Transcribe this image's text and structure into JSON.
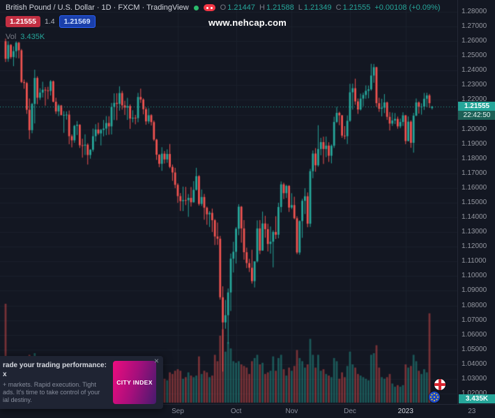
{
  "header": {
    "title": "British Pound / U.S. Dollar · 1D · FXCM · TradingView",
    "ohlc": {
      "o_label": "O",
      "o": "1.21447",
      "h_label": "H",
      "h": "1.21588",
      "l_label": "L",
      "l": "1.21349",
      "c_label": "C",
      "c": "1.21555",
      "change": "+0.00108 (+0.09%)"
    },
    "bid": "1.21555",
    "spread": "1.4",
    "ask": "1.21569",
    "vol_label": "Vol",
    "vol_value": "3.435K"
  },
  "watermark": "www.nehcap.com",
  "colors": {
    "up": "#26a69a",
    "down": "#ef5350",
    "bg": "#131722",
    "grid": "#1b202c",
    "axis_text": "#9598a1"
  },
  "price_badge": {
    "price": "1.21555",
    "countdown": "22:42:50"
  },
  "volume_badge": "3.435K",
  "ad": {
    "title_line1": "rade your trading performance: City",
    "title_line2": "x",
    "body_line1": "+ markets. Rapid execution. Tight",
    "body_line2": "ads. It's time to take control of your",
    "body_line3": "ial destiny.",
    "logo_text": "CITY INDEX",
    "close": "×"
  },
  "chart_data": {
    "type": "candlestick",
    "title": "British Pound / U.S. Dollar",
    "symbol": "GBPUSD",
    "interval": "1D",
    "exchange": "FXCM",
    "last_price": 1.21555,
    "countdown": "22:42:50",
    "current_volume": "3.435K",
    "legend_ohlc": {
      "open": 1.21447,
      "high": 1.21588,
      "low": 1.21349,
      "close": 1.21555,
      "change": 0.00108,
      "change_pct": 0.09
    },
    "y_axis": {
      "min": 1.02,
      "max": 1.28,
      "tick_step": 0.01,
      "labels": [
        "1.28000",
        "1.27000",
        "1.26000",
        "1.25000",
        "1.24000",
        "1.23000",
        "1.22000",
        "1.21000",
        "1.20000",
        "1.19000",
        "1.18000",
        "1.17000",
        "1.16000",
        "1.15000",
        "1.14000",
        "1.13000",
        "1.12000",
        "1.11000",
        "1.10000",
        "1.09000",
        "1.08000",
        "1.07000",
        "1.06000",
        "1.05000",
        "1.04000",
        "1.03000",
        "1.02000"
      ]
    },
    "x_axis": {
      "labels": [
        {
          "label": "Sep",
          "index": 65
        },
        {
          "label": "Oct",
          "index": 87
        },
        {
          "label": "Nov",
          "index": 108
        },
        {
          "label": "Dec",
          "index": 130
        },
        {
          "label": "2023",
          "index": 151,
          "major": true
        },
        {
          "label": "23",
          "index": 176
        }
      ]
    },
    "candles_format": [
      "open",
      "high",
      "low",
      "close",
      "volume_k"
    ],
    "candles": [
      [
        1.26,
        1.2618,
        1.2458,
        1.248,
        620
      ],
      [
        1.248,
        1.26,
        1.246,
        1.2575,
        230
      ],
      [
        1.2575,
        1.258,
        1.248,
        1.2492,
        180
      ],
      [
        1.2492,
        1.2565,
        1.243,
        1.2532,
        170
      ],
      [
        1.2532,
        1.2599,
        1.2485,
        1.259,
        160
      ],
      [
        1.259,
        1.2595,
        1.2483,
        1.2538,
        175
      ],
      [
        1.2538,
        1.2547,
        1.2315,
        1.2322,
        240
      ],
      [
        1.2322,
        1.2339,
        1.2276,
        1.2315,
        190
      ],
      [
        1.2315,
        1.2323,
        1.2105,
        1.2133,
        280
      ],
      [
        1.2133,
        1.221,
        1.1933,
        1.1994,
        300
      ],
      [
        1.1994,
        1.218,
        1.1973,
        1.2173,
        260
      ],
      [
        1.2173,
        1.2406,
        1.204,
        1.235,
        310
      ],
      [
        1.235,
        1.2361,
        1.2171,
        1.2215,
        250
      ],
      [
        1.2215,
        1.228,
        1.22,
        1.225,
        150
      ],
      [
        1.225,
        1.2324,
        1.2217,
        1.227,
        160
      ],
      [
        1.227,
        1.2288,
        1.2161,
        1.2265,
        170
      ],
      [
        1.2265,
        1.229,
        1.2205,
        1.2261,
        140
      ],
      [
        1.2261,
        1.2335,
        1.223,
        1.2327,
        150
      ],
      [
        1.2327,
        1.2332,
        1.2183,
        1.2188,
        180
      ],
      [
        1.2188,
        1.2215,
        1.2105,
        1.2122,
        190
      ],
      [
        1.2122,
        1.2172,
        1.209,
        1.2162,
        150
      ],
      [
        1.2162,
        1.2166,
        1.2093,
        1.2098,
        160
      ],
      [
        1.2098,
        1.2124,
        1.1976,
        1.2098,
        170
      ],
      [
        1.2098,
        1.2122,
        1.2066,
        1.21,
        120
      ],
      [
        1.21,
        1.2128,
        1.1899,
        1.1953,
        210
      ],
      [
        1.1953,
        1.1965,
        1.1877,
        1.1925,
        180
      ],
      [
        1.1925,
        1.203,
        1.1908,
        1.2024,
        170
      ],
      [
        1.2024,
        1.2056,
        1.1961,
        1.2031,
        160
      ],
      [
        1.2031,
        1.2035,
        1.1873,
        1.1891,
        190
      ],
      [
        1.1891,
        1.1936,
        1.1807,
        1.1889,
        200
      ],
      [
        1.1889,
        1.1966,
        1.1825,
        1.1895,
        180
      ],
      [
        1.1895,
        1.1905,
        1.176,
        1.1825,
        220
      ],
      [
        1.1825,
        1.1866,
        1.18,
        1.1861,
        150
      ],
      [
        1.1861,
        1.2005,
        1.1848,
        1.1953,
        190
      ],
      [
        1.1953,
        1.2035,
        1.1917,
        1.1999,
        170
      ],
      [
        1.1999,
        1.2045,
        1.1962,
        1.1972,
        150
      ],
      [
        1.1972,
        1.2003,
        1.189,
        1.1996,
        160
      ],
      [
        1.1996,
        1.2064,
        1.1952,
        1.2005,
        150
      ],
      [
        1.2005,
        1.209,
        1.196,
        1.2043,
        140
      ],
      [
        1.2043,
        1.2089,
        1.1963,
        1.202,
        150
      ],
      [
        1.202,
        1.218,
        1.1965,
        1.2153,
        230
      ],
      [
        1.2153,
        1.2245,
        1.2063,
        1.218,
        210
      ],
      [
        1.218,
        1.2246,
        1.2062,
        1.2173,
        180
      ],
      [
        1.2173,
        1.2293,
        1.2127,
        1.2247,
        190
      ],
      [
        1.2247,
        1.2262,
        1.2134,
        1.2163,
        170
      ],
      [
        1.2163,
        1.2194,
        1.2098,
        1.2148,
        150
      ],
      [
        1.2148,
        1.2214,
        1.2064,
        1.2158,
        200
      ],
      [
        1.2158,
        1.217,
        1.2003,
        1.2073,
        210
      ],
      [
        1.2073,
        1.213,
        1.2047,
        1.2079,
        130
      ],
      [
        1.2079,
        1.2098,
        1.2034,
        1.2076,
        140
      ],
      [
        1.2076,
        1.2248,
        1.2048,
        1.222,
        220
      ],
      [
        1.222,
        1.2277,
        1.218,
        1.2203,
        160
      ],
      [
        1.2203,
        1.2211,
        1.2102,
        1.2137,
        150
      ],
      [
        1.2137,
        1.2149,
        1.2031,
        1.2054,
        160
      ],
      [
        1.2054,
        1.2144,
        1.2038,
        1.2096,
        150
      ],
      [
        1.2096,
        1.2103,
        1.2026,
        1.2049,
        140
      ],
      [
        1.2049,
        1.206,
        1.192,
        1.193,
        180
      ],
      [
        1.193,
        1.1935,
        1.1792,
        1.1827,
        200
      ],
      [
        1.1827,
        1.1831,
        1.1742,
        1.1765,
        190
      ],
      [
        1.1765,
        1.1878,
        1.1717,
        1.1834,
        180
      ],
      [
        1.1834,
        1.1852,
        1.1767,
        1.1795,
        150
      ],
      [
        1.1795,
        1.1864,
        1.1772,
        1.1832,
        140
      ],
      [
        1.1832,
        1.19,
        1.1735,
        1.1744,
        190
      ],
      [
        1.1744,
        1.176,
        1.1649,
        1.1706,
        180
      ],
      [
        1.1706,
        1.1738,
        1.1599,
        1.1622,
        200
      ],
      [
        1.1622,
        1.1633,
        1.1499,
        1.1545,
        210
      ],
      [
        1.1545,
        1.1566,
        1.1444,
        1.1511,
        200
      ],
      [
        1.1511,
        1.161,
        1.1443,
        1.1518,
        150
      ],
      [
        1.1518,
        1.1608,
        1.1484,
        1.1517,
        160
      ],
      [
        1.1517,
        1.1559,
        1.1404,
        1.1533,
        190
      ],
      [
        1.1533,
        1.1607,
        1.1474,
        1.1503,
        170
      ],
      [
        1.1503,
        1.1647,
        1.1501,
        1.1588,
        160
      ],
      [
        1.1588,
        1.1738,
        1.1583,
        1.1681,
        170
      ],
      [
        1.1681,
        1.1688,
        1.148,
        1.1492,
        290
      ],
      [
        1.1492,
        1.159,
        1.1478,
        1.1539,
        180
      ],
      [
        1.1539,
        1.156,
        1.1384,
        1.1466,
        200
      ],
      [
        1.1466,
        1.1474,
        1.135,
        1.1421,
        190
      ],
      [
        1.1421,
        1.1443,
        1.1335,
        1.1431,
        160
      ],
      [
        1.1431,
        1.146,
        1.1301,
        1.1381,
        170
      ],
      [
        1.1381,
        1.1389,
        1.1212,
        1.127,
        300
      ],
      [
        1.127,
        1.1365,
        1.1213,
        1.1255,
        260
      ],
      [
        1.1255,
        1.1274,
        1.084,
        1.0856,
        420
      ],
      [
        1.0856,
        1.0931,
        1.035,
        1.0685,
        460
      ],
      [
        1.0685,
        1.0838,
        1.0642,
        1.0734,
        320
      ],
      [
        1.0734,
        1.0916,
        1.0539,
        1.0889,
        380
      ],
      [
        1.0889,
        1.1154,
        1.0763,
        1.1119,
        340
      ],
      [
        1.1119,
        1.1234,
        1.1025,
        1.1166,
        260
      ],
      [
        1.1166,
        1.1334,
        1.1086,
        1.1323,
        250
      ],
      [
        1.1323,
        1.149,
        1.1279,
        1.1473,
        260
      ],
      [
        1.1473,
        1.1478,
        1.1228,
        1.1325,
        240
      ],
      [
        1.1325,
        1.1382,
        1.1112,
        1.1163,
        230
      ],
      [
        1.1163,
        1.1194,
        1.1055,
        1.1089,
        220
      ],
      [
        1.1089,
        1.1118,
        1.1028,
        1.1057,
        180
      ],
      [
        1.1057,
        1.118,
        1.0949,
        1.0966,
        260
      ],
      [
        1.0966,
        1.1098,
        1.0923,
        1.1101,
        280
      ],
      [
        1.1101,
        1.138,
        1.1093,
        1.1325,
        300
      ],
      [
        1.1325,
        1.1382,
        1.115,
        1.1174,
        240
      ],
      [
        1.1174,
        1.144,
        1.1174,
        1.1359,
        250
      ],
      [
        1.1359,
        1.1411,
        1.1262,
        1.132,
        180
      ],
      [
        1.132,
        1.1357,
        1.1168,
        1.1219,
        190
      ],
      [
        1.1219,
        1.1338,
        1.1153,
        1.1235,
        200
      ],
      [
        1.1235,
        1.1312,
        1.106,
        1.1301,
        290
      ],
      [
        1.1301,
        1.1408,
        1.1253,
        1.1282,
        200
      ],
      [
        1.1282,
        1.15,
        1.1258,
        1.1471,
        280
      ],
      [
        1.1471,
        1.1645,
        1.1434,
        1.1625,
        300
      ],
      [
        1.1625,
        1.1636,
        1.1525,
        1.1565,
        210
      ],
      [
        1.1565,
        1.1622,
        1.1532,
        1.1615,
        170
      ],
      [
        1.1615,
        1.162,
        1.1437,
        1.1467,
        220
      ],
      [
        1.1467,
        1.1565,
        1.1456,
        1.1484,
        200
      ],
      [
        1.1484,
        1.1541,
        1.1387,
        1.1394,
        230
      ],
      [
        1.1394,
        1.1408,
        1.115,
        1.1161,
        330
      ],
      [
        1.1161,
        1.138,
        1.1146,
        1.1375,
        280
      ],
      [
        1.1375,
        1.1527,
        1.1261,
        1.1513,
        260
      ],
      [
        1.1513,
        1.1599,
        1.1423,
        1.1544,
        220
      ],
      [
        1.1544,
        1.157,
        1.1333,
        1.1357,
        240
      ],
      [
        1.1357,
        1.1731,
        1.1335,
        1.1715,
        400
      ],
      [
        1.1715,
        1.1856,
        1.1667,
        1.1835,
        300
      ],
      [
        1.1835,
        1.1872,
        1.1711,
        1.1755,
        220
      ],
      [
        1.1755,
        1.2028,
        1.1745,
        1.1866,
        300
      ],
      [
        1.1866,
        1.1942,
        1.1823,
        1.1913,
        200
      ],
      [
        1.1913,
        1.195,
        1.1764,
        1.1866,
        210
      ],
      [
        1.1866,
        1.1951,
        1.181,
        1.1889,
        180
      ],
      [
        1.1889,
        1.1912,
        1.1778,
        1.182,
        170
      ],
      [
        1.182,
        1.1897,
        1.1768,
        1.1888,
        160
      ],
      [
        1.1888,
        1.2086,
        1.1873,
        1.205,
        280
      ],
      [
        1.205,
        1.2153,
        1.2043,
        1.2112,
        260
      ],
      [
        1.2112,
        1.212,
        1.2028,
        1.2095,
        150
      ],
      [
        1.2095,
        1.2098,
        1.1942,
        1.1957,
        190
      ],
      [
        1.1957,
        1.2022,
        1.1932,
        1.1953,
        160
      ],
      [
        1.1953,
        1.2094,
        1.19,
        1.2058,
        230
      ],
      [
        1.2058,
        1.231,
        1.2051,
        1.2252,
        320
      ],
      [
        1.2252,
        1.2311,
        1.2134,
        1.228,
        240
      ],
      [
        1.228,
        1.2345,
        1.2167,
        1.219,
        220
      ],
      [
        1.219,
        1.221,
        1.2105,
        1.2135,
        180
      ],
      [
        1.2135,
        1.2243,
        1.2128,
        1.2209,
        170
      ],
      [
        1.2209,
        1.225,
        1.2157,
        1.2234,
        160
      ],
      [
        1.2234,
        1.2299,
        1.2208,
        1.2262,
        150
      ],
      [
        1.2262,
        1.2298,
        1.2211,
        1.2272,
        140
      ],
      [
        1.2272,
        1.2446,
        1.2263,
        1.2366,
        300
      ],
      [
        1.2366,
        1.2445,
        1.2317,
        1.2423,
        310
      ],
      [
        1.2423,
        1.2426,
        1.2155,
        1.2178,
        360
      ],
      [
        1.2178,
        1.2215,
        1.2119,
        1.214,
        220
      ],
      [
        1.214,
        1.2208,
        1.2088,
        1.2147,
        160
      ],
      [
        1.2147,
        1.224,
        1.211,
        1.2183,
        150
      ],
      [
        1.2183,
        1.2189,
        1.2064,
        1.2085,
        160
      ],
      [
        1.2085,
        1.2118,
        1.1992,
        1.2039,
        180
      ],
      [
        1.2039,
        1.2114,
        1.2023,
        1.206,
        120
      ],
      [
        1.206,
        1.2111,
        1.2036,
        1.2071,
        100
      ],
      [
        1.2071,
        1.2087,
        1.2004,
        1.202,
        110
      ],
      [
        1.202,
        1.2073,
        1.2007,
        1.205,
        100
      ],
      [
        1.205,
        1.2116,
        1.2023,
        1.2095,
        110
      ],
      [
        1.2095,
        1.2098,
        1.1899,
        1.192,
        240
      ],
      [
        1.192,
        1.2088,
        1.1918,
        1.2052,
        220
      ],
      [
        1.2052,
        1.2061,
        1.1874,
        1.1908,
        230
      ],
      [
        1.1908,
        1.2112,
        1.1841,
        1.2093,
        300
      ],
      [
        1.2093,
        1.221,
        1.2089,
        1.2183,
        260
      ],
      [
        1.2183,
        1.219,
        1.2107,
        1.2153,
        200
      ],
      [
        1.2153,
        1.2177,
        1.21,
        1.2155,
        180
      ],
      [
        1.2155,
        1.2248,
        1.2132,
        1.2208,
        210
      ],
      [
        1.2208,
        1.2249,
        1.2153,
        1.2231,
        190
      ],
      [
        1.2231,
        1.2241,
        1.2146,
        1.2178,
        560
      ],
      [
        1.21447,
        1.21588,
        1.21349,
        1.21555,
        3.435
      ]
    ]
  }
}
